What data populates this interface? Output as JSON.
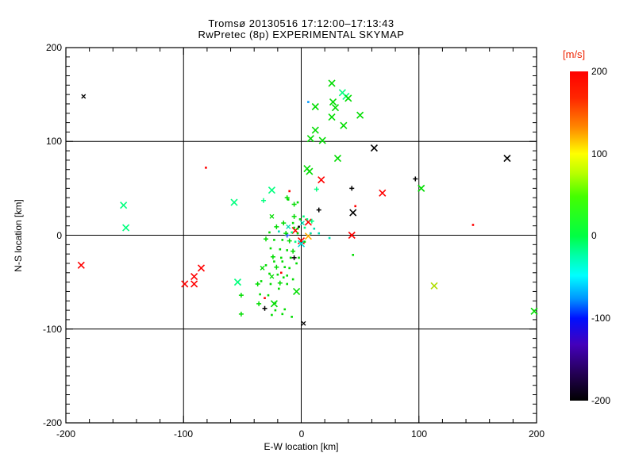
{
  "chart_data": {
    "type": "scatter",
    "title": "Tromsø 20130516 17:12:00–17:13:43",
    "subtitle": "RwPretec (8p) EXPERIMENTAL SKYMAP",
    "xlabel": "E-W location [km]",
    "ylabel": "N-S location [km]",
    "xlim": [
      -200,
      200
    ],
    "ylim": [
      -200,
      200
    ],
    "x_ticks": [
      "-200",
      "-100",
      "0",
      "100",
      "200"
    ],
    "y_ticks": [
      "200",
      "100",
      "0",
      "-100",
      "-200"
    ],
    "grid_at": [
      -100,
      0,
      100
    ],
    "grid": true,
    "legend_position": "none",
    "colorbar": {
      "label": "[m/s]",
      "label_color": "#ee2200",
      "range": [
        -200,
        200
      ],
      "ticks": [
        "200",
        "100",
        "0",
        "-100",
        "-200"
      ],
      "stops": [
        [
          0,
          "#ff0000"
        ],
        [
          8,
          "#ff2600"
        ],
        [
          17,
          "#ff8800"
        ],
        [
          25,
          "#ffff00"
        ],
        [
          31,
          "#b8ff00"
        ],
        [
          38,
          "#44ff00"
        ],
        [
          50,
          "#00ff44"
        ],
        [
          56,
          "#00ffaa"
        ],
        [
          62,
          "#00ffff"
        ],
        [
          69,
          "#0096ff"
        ],
        [
          75,
          "#0010ff"
        ],
        [
          83,
          "#4400bb"
        ],
        [
          92,
          "#230052"
        ],
        [
          100,
          "#000000"
        ]
      ]
    },
    "palette": {
      "g": "#00dc00",
      "s": "#00ff7d",
      "t": "#00ddb0",
      "c": "#00ddd5",
      "r": "#ff0000",
      "o": "#ffaa00",
      "y": "#aedd00",
      "b": "#2b45ff",
      "B": "#0099ff",
      "k": "#000000"
    },
    "marker_note": "X=large cross, x=small cross, +=plus, .=dot; coords in km",
    "points": [
      [
        -185,
        148,
        "k",
        "x"
      ],
      [
        62,
        93,
        "k",
        "X"
      ],
      [
        175,
        82,
        "k",
        "X"
      ],
      [
        44,
        24,
        "k",
        "X"
      ],
      [
        2,
        -94,
        "k",
        "x"
      ],
      [
        17,
        59,
        "r",
        "X"
      ],
      [
        69,
        45,
        "r",
        "X"
      ],
      [
        43,
        0,
        "r",
        "X"
      ],
      [
        -187,
        -32,
        "r",
        "X"
      ],
      [
        -85,
        -35,
        "r",
        "X"
      ],
      [
        -91,
        -44,
        "r",
        "X"
      ],
      [
        -99,
        -52,
        "r",
        "X"
      ],
      [
        -91,
        -52,
        "r",
        "X"
      ],
      [
        6,
        14,
        "r",
        "X"
      ],
      [
        -5,
        5,
        "r",
        "X"
      ],
      [
        0,
        -6,
        "r",
        "X"
      ],
      [
        26,
        162,
        "g",
        "X"
      ],
      [
        35,
        152,
        "s",
        "X"
      ],
      [
        38,
        148,
        "s",
        "X"
      ],
      [
        40,
        146,
        "g",
        "X"
      ],
      [
        27,
        142,
        "g",
        "X"
      ],
      [
        12,
        137,
        "g",
        "X"
      ],
      [
        29,
        136,
        "g",
        "X"
      ],
      [
        50,
        128,
        "g",
        "X"
      ],
      [
        26,
        126,
        "g",
        "X"
      ],
      [
        36,
        117,
        "g",
        "X"
      ],
      [
        12,
        112,
        "g",
        "X"
      ],
      [
        8,
        103,
        "g",
        "X"
      ],
      [
        18,
        101,
        "g",
        "X"
      ],
      [
        31,
        82,
        "g",
        "X"
      ],
      [
        5,
        71,
        "g",
        "X"
      ],
      [
        7,
        68,
        "g",
        "X"
      ],
      [
        102,
        50,
        "g",
        "X"
      ],
      [
        -25,
        48,
        "s",
        "X"
      ],
      [
        -57,
        35,
        "s",
        "X"
      ],
      [
        -151,
        32,
        "s",
        "X"
      ],
      [
        -149,
        8,
        "s",
        "X"
      ],
      [
        -54,
        -50,
        "s",
        "X"
      ],
      [
        -4,
        -60,
        "g",
        "X"
      ],
      [
        -23,
        -73,
        "g",
        "X"
      ],
      [
        198,
        -81,
        "g",
        "X"
      ],
      [
        113,
        -54,
        "y",
        "X"
      ],
      [
        6,
        -1,
        "o",
        "X"
      ],
      [
        0,
        -9,
        "c",
        "X"
      ],
      [
        97,
        60,
        "k",
        "+"
      ],
      [
        43,
        50,
        "k",
        "+"
      ],
      [
        15,
        27,
        "k",
        "+"
      ],
      [
        -6,
        -24,
        "k",
        "+"
      ],
      [
        -31,
        -78,
        "k",
        "+"
      ],
      [
        -2,
        9,
        "k",
        "."
      ],
      [
        -12,
        0,
        "b",
        "+"
      ],
      [
        6,
        142,
        "B",
        "."
      ],
      [
        -81,
        72,
        "r",
        "."
      ],
      [
        -10,
        47,
        "r",
        "."
      ],
      [
        46,
        31,
        "r",
        "."
      ],
      [
        146,
        11,
        "r",
        "."
      ],
      [
        -17,
        -40,
        "r",
        "."
      ],
      [
        -31,
        -67,
        "r",
        "."
      ],
      [
        -32,
        37,
        "s",
        "+"
      ],
      [
        -12,
        40,
        "g",
        "+"
      ],
      [
        -3,
        35,
        "g",
        "."
      ],
      [
        13,
        49,
        "s",
        "+"
      ],
      [
        -6,
        33,
        "g",
        "+"
      ],
      [
        -11,
        38,
        "g",
        "."
      ],
      [
        -25,
        20,
        "g",
        "x"
      ],
      [
        -6,
        20,
        "g",
        "+"
      ],
      [
        2,
        20,
        "s",
        "."
      ],
      [
        -1,
        17,
        "g",
        "."
      ],
      [
        5,
        17,
        "s",
        "."
      ],
      [
        9,
        15,
        "s",
        "+"
      ],
      [
        -15,
        13,
        "g",
        "+"
      ],
      [
        -7,
        13,
        "g",
        "."
      ],
      [
        1,
        13,
        "t",
        "x"
      ],
      [
        -21,
        9,
        "g",
        "+"
      ],
      [
        -11,
        9,
        "t",
        "x"
      ],
      [
        -6,
        8,
        "g",
        "."
      ],
      [
        -3,
        7,
        "g",
        "."
      ],
      [
        3,
        8,
        "s",
        "."
      ],
      [
        11,
        7,
        "t",
        "."
      ],
      [
        -27,
        3,
        "g",
        "."
      ],
      [
        -19,
        4,
        "t",
        "."
      ],
      [
        -13,
        2,
        "g",
        "+"
      ],
      [
        -8,
        3,
        "s",
        "."
      ],
      [
        -3,
        2,
        "g",
        "."
      ],
      [
        8,
        2,
        "t",
        "."
      ],
      [
        15,
        2,
        "t",
        "."
      ],
      [
        24,
        -3,
        "t",
        "."
      ],
      [
        -30,
        -4,
        "g",
        "+"
      ],
      [
        -23,
        -5,
        "g",
        "."
      ],
      [
        -16,
        -5,
        "g",
        "."
      ],
      [
        -10,
        -6,
        "g",
        "+"
      ],
      [
        -5,
        -7,
        "s",
        "."
      ],
      [
        3,
        -7,
        "g",
        "."
      ],
      [
        -26,
        -14,
        "g",
        "."
      ],
      [
        -18,
        -15,
        "g",
        "."
      ],
      [
        -12,
        -16,
        "g",
        "."
      ],
      [
        -7,
        -17,
        "g",
        "+"
      ],
      [
        44,
        -21,
        "g",
        "."
      ],
      [
        -24,
        -23,
        "g",
        "+"
      ],
      [
        -17,
        -24,
        "g",
        "."
      ],
      [
        -9,
        -24,
        "g",
        "."
      ],
      [
        -2,
        -24,
        "g",
        "."
      ],
      [
        -30,
        -32,
        "g",
        "."
      ],
      [
        -21,
        -34,
        "g",
        "+"
      ],
      [
        -14,
        -34,
        "g",
        "."
      ],
      [
        -33,
        -35,
        "g",
        "x"
      ],
      [
        -27,
        -41,
        "g",
        "."
      ],
      [
        -20,
        -42,
        "g",
        "."
      ],
      [
        -12,
        -43,
        "g",
        "."
      ],
      [
        -25,
        -44,
        "g",
        "x"
      ],
      [
        -34,
        -49,
        "g",
        "."
      ],
      [
        -37,
        -52,
        "g",
        "+"
      ],
      [
        -26,
        -52,
        "g",
        "."
      ],
      [
        -18,
        -51,
        "g",
        "+"
      ],
      [
        -51,
        -64,
        "g",
        "+"
      ],
      [
        -35,
        -63,
        "g",
        "."
      ],
      [
        -28,
        -64,
        "g",
        "."
      ],
      [
        -36,
        -73,
        "g",
        "+"
      ],
      [
        -22,
        -72,
        "g",
        "."
      ],
      [
        -51,
        -84,
        "g",
        "+"
      ],
      [
        -25,
        -85,
        "g",
        "."
      ],
      [
        -22,
        -80,
        "g",
        "."
      ],
      [
        -16,
        -84,
        "g",
        "."
      ],
      [
        -14,
        -79,
        "g",
        "."
      ],
      [
        -8,
        -87,
        "g",
        "."
      ],
      [
        -19,
        -57,
        "g",
        "."
      ],
      [
        -12,
        -52,
        "g",
        "."
      ],
      [
        -7,
        -47,
        "g",
        "."
      ],
      [
        -15,
        -45,
        "g",
        "."
      ],
      [
        -10,
        -35,
        "g",
        "."
      ],
      [
        -4,
        -30,
        "g",
        "."
      ],
      [
        -16,
        -28,
        "g",
        "."
      ],
      [
        -23,
        -28,
        "g",
        "."
      ]
    ]
  }
}
